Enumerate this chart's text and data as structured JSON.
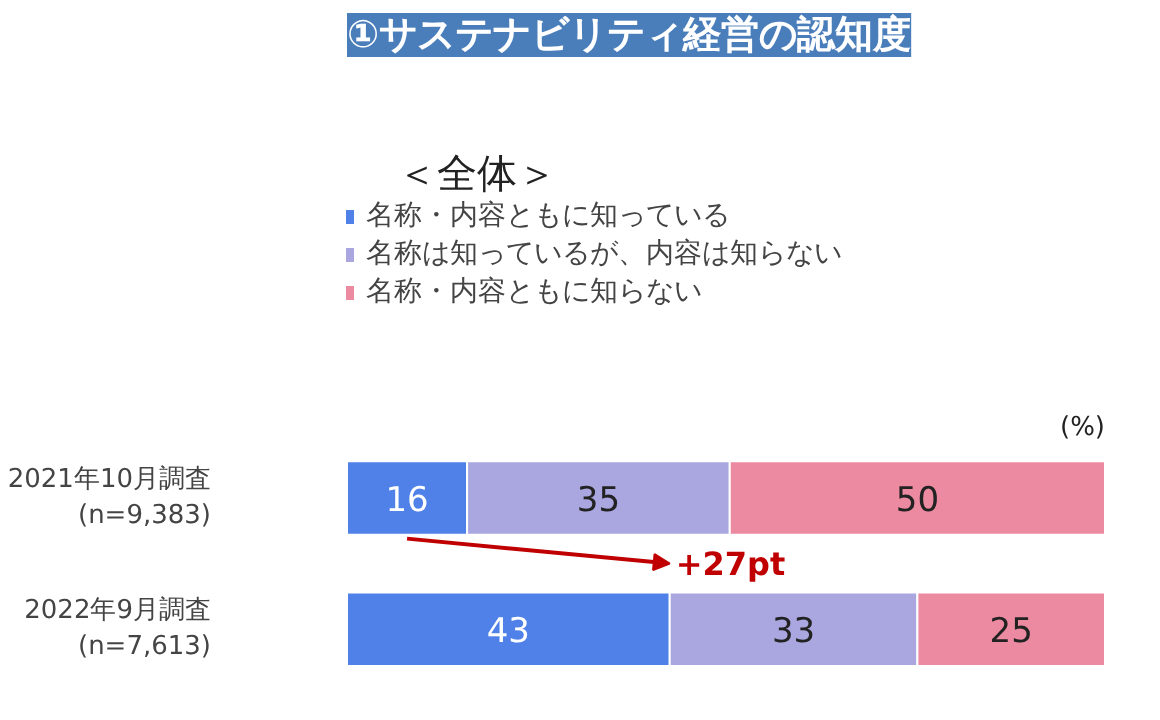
{
  "chart_data": {
    "type": "bar",
    "orientation": "horizontal",
    "stacked": true,
    "title": "①サステナビリティ経営の認知度",
    "subtitle": "＜全体＞",
    "categories": [
      "2021年10月調査\n(n=9,383)",
      "2022年9月調査\n(n=7,613)"
    ],
    "series": [
      {
        "name": "名称・内容ともに知っている",
        "color": "#4f81e8",
        "values": [
          16,
          43
        ]
      },
      {
        "name": "名称は知っているが、内容は知らない",
        "color": "#a9a6e0",
        "values": [
          35,
          33
        ]
      },
      {
        "name": "名称・内容ともに知らない",
        "color": "#ec8aa1",
        "values": [
          50,
          25
        ]
      }
    ],
    "data_labels": true,
    "legend": "top left",
    "tick_labels": "y",
    "annotations": [
      "(%)",
      "+27pt"
    ]
  }
}
